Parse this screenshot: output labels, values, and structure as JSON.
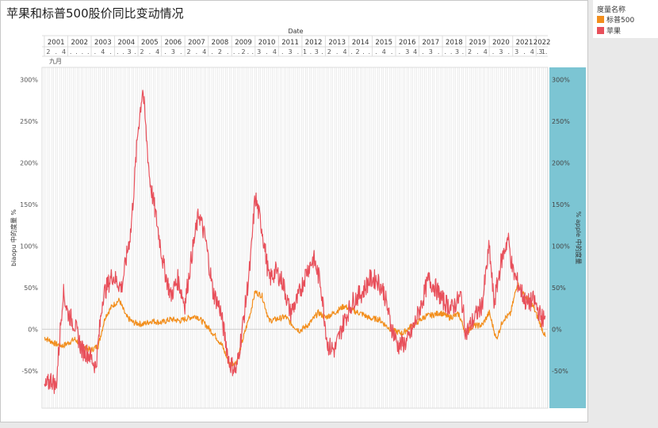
{
  "title": "苹果和标普500股价同比变动情况",
  "legend": {
    "title": "度量名称",
    "items": [
      {
        "label": "标普500",
        "color": "#f28e1c"
      },
      {
        "label": "苹果",
        "color": "#e8505b"
      }
    ]
  },
  "chart_data": {
    "type": "line",
    "title": "苹果和标普500股价同比变动情况",
    "xlabel": "Date",
    "ylabel": "biaopu 中的度量 %",
    "y2label": "% apple 中的度量",
    "x_range": [
      2000.9,
      2022.5
    ],
    "ylim": [
      -0.95,
      3.15
    ],
    "y_ticks": [
      -0.5,
      0,
      0.5,
      1.0,
      1.5,
      2.0,
      2.5,
      3.0
    ],
    "y_tick_labels": [
      "-50%",
      "0%",
      "50%",
      "100%",
      "150%",
      "200%",
      "250%",
      "300%"
    ],
    "year_labels": [
      "2001",
      "2002",
      "2003",
      "2004",
      "2005",
      "2006",
      "2007",
      "2008",
      "2009",
      "2010",
      "2011",
      "2012",
      "2013",
      "2014",
      "2015",
      "2016",
      "2017",
      "2018",
      "2019",
      "2020",
      "2021",
      "2022"
    ],
    "quarter_row": [
      {
        "year": "2001",
        "labels": [
          "2",
          ".",
          "4"
        ]
      },
      {
        "year": "2002",
        "labels": [
          ".",
          ".",
          ".",
          "."
        ]
      },
      {
        "year": "2003",
        "labels": [
          ".",
          "4",
          "."
        ]
      },
      {
        "year": "2004",
        "labels": [
          ".",
          ".",
          "3",
          "."
        ]
      },
      {
        "year": "2005",
        "labels": [
          "2",
          ".",
          "4"
        ]
      },
      {
        "year": "2006",
        "labels": [
          ".",
          "3",
          "."
        ]
      },
      {
        "year": "2007",
        "labels": [
          "2",
          ".",
          "4"
        ]
      },
      {
        "year": "2008",
        "labels": [
          ".",
          "2",
          "."
        ]
      },
      {
        "year": "2009",
        "labels": [
          ".",
          ".",
          "2",
          ".",
          "."
        ]
      },
      {
        "year": "2010",
        "labels": [
          "3",
          ".",
          "4"
        ]
      },
      {
        "year": "2011",
        "labels": [
          ".",
          "3",
          "."
        ]
      },
      {
        "year": "2012",
        "labels": [
          "1",
          ".",
          "3",
          "."
        ]
      },
      {
        "year": "2013",
        "labels": [
          "2",
          ".",
          "4"
        ]
      },
      {
        "year": "2014",
        "labels": [
          ".",
          "2",
          ".",
          "."
        ]
      },
      {
        "year": "2015",
        "labels": [
          ".",
          "4",
          "."
        ]
      },
      {
        "year": "2016",
        "labels": [
          ".",
          "3",
          "4"
        ]
      },
      {
        "year": "2017",
        "labels": [
          ".",
          "3",
          "."
        ]
      },
      {
        "year": "2018",
        "labels": [
          ".",
          ".",
          "3",
          "."
        ]
      },
      {
        "year": "2019",
        "labels": [
          "2",
          ".",
          "4"
        ]
      },
      {
        "year": "2020",
        "labels": [
          ".",
          "3",
          "."
        ]
      },
      {
        "year": "2021",
        "labels": [
          "3",
          ".",
          "4"
        ]
      },
      {
        "year": "2022",
        "labels": [
          ".",
          "3",
          "1",
          "."
        ]
      }
    ],
    "month_label": "九月",
    "series": [
      {
        "name": "标普500",
        "color": "#f28e1c",
        "points": [
          [
            2001.0,
            -0.1
          ],
          [
            2001.5,
            -0.18
          ],
          [
            2001.8,
            -0.2
          ],
          [
            2002.3,
            -0.12
          ],
          [
            2002.7,
            -0.22
          ],
          [
            2003.0,
            -0.25
          ],
          [
            2003.3,
            -0.2
          ],
          [
            2003.6,
            0.15
          ],
          [
            2003.9,
            0.28
          ],
          [
            2004.2,
            0.35
          ],
          [
            2004.5,
            0.15
          ],
          [
            2004.8,
            0.08
          ],
          [
            2005.2,
            0.06
          ],
          [
            2005.6,
            0.1
          ],
          [
            2006.0,
            0.08
          ],
          [
            2006.4,
            0.12
          ],
          [
            2006.8,
            0.1
          ],
          [
            2007.2,
            0.14
          ],
          [
            2007.5,
            0.16
          ],
          [
            2007.9,
            0.05
          ],
          [
            2008.3,
            -0.08
          ],
          [
            2008.6,
            -0.2
          ],
          [
            2008.9,
            -0.42
          ],
          [
            2009.2,
            -0.4
          ],
          [
            2009.5,
            -0.1
          ],
          [
            2009.8,
            0.2
          ],
          [
            2010.0,
            0.45
          ],
          [
            2010.3,
            0.4
          ],
          [
            2010.6,
            0.1
          ],
          [
            2010.9,
            0.12
          ],
          [
            2011.3,
            0.15
          ],
          [
            2011.6,
            0.05
          ],
          [
            2011.9,
            -0.02
          ],
          [
            2012.3,
            0.06
          ],
          [
            2012.7,
            0.2
          ],
          [
            2013.0,
            0.14
          ],
          [
            2013.4,
            0.2
          ],
          [
            2013.8,
            0.28
          ],
          [
            2014.2,
            0.22
          ],
          [
            2014.6,
            0.18
          ],
          [
            2014.9,
            0.13
          ],
          [
            2015.3,
            0.12
          ],
          [
            2015.6,
            0.04
          ],
          [
            2015.9,
            -0.02
          ],
          [
            2016.3,
            -0.05
          ],
          [
            2016.6,
            0.02
          ],
          [
            2016.9,
            0.08
          ],
          [
            2017.3,
            0.16
          ],
          [
            2017.6,
            0.17
          ],
          [
            2017.9,
            0.2
          ],
          [
            2018.3,
            0.14
          ],
          [
            2018.7,
            0.18
          ],
          [
            2019.0,
            -0.05
          ],
          [
            2019.3,
            0.04
          ],
          [
            2019.7,
            0.05
          ],
          [
            2020.0,
            0.2
          ],
          [
            2020.3,
            -0.12
          ],
          [
            2020.6,
            0.12
          ],
          [
            2020.9,
            0.18
          ],
          [
            2021.2,
            0.55
          ],
          [
            2021.5,
            0.4
          ],
          [
            2021.8,
            0.32
          ],
          [
            2022.1,
            0.12
          ],
          [
            2022.4,
            -0.1
          ]
        ]
      },
      {
        "name": "苹果",
        "color": "#e8505b",
        "points": [
          [
            2001.0,
            -0.72
          ],
          [
            2001.3,
            -0.6
          ],
          [
            2001.5,
            -0.7
          ],
          [
            2001.8,
            0.45
          ],
          [
            2002.0,
            0.2
          ],
          [
            2002.3,
            0.05
          ],
          [
            2002.6,
            -0.25
          ],
          [
            2002.9,
            -0.3
          ],
          [
            2003.2,
            -0.45
          ],
          [
            2003.5,
            0.4
          ],
          [
            2003.9,
            0.65
          ],
          [
            2004.3,
            0.5
          ],
          [
            2004.7,
            1.2
          ],
          [
            2005.0,
            2.4
          ],
          [
            2005.2,
            2.9
          ],
          [
            2005.5,
            1.8
          ],
          [
            2005.8,
            1.3
          ],
          [
            2006.1,
            0.75
          ],
          [
            2006.4,
            0.4
          ],
          [
            2006.7,
            0.6
          ],
          [
            2007.0,
            0.3
          ],
          [
            2007.3,
            0.9
          ],
          [
            2007.6,
            1.4
          ],
          [
            2007.9,
            1.05
          ],
          [
            2008.2,
            0.45
          ],
          [
            2008.5,
            0.25
          ],
          [
            2008.9,
            -0.4
          ],
          [
            2009.2,
            -0.5
          ],
          [
            2009.5,
            0.1
          ],
          [
            2009.8,
            0.8
          ],
          [
            2010.0,
            1.6
          ],
          [
            2010.3,
            1.2
          ],
          [
            2010.6,
            0.6
          ],
          [
            2010.9,
            0.7
          ],
          [
            2011.2,
            0.55
          ],
          [
            2011.5,
            0.2
          ],
          [
            2011.8,
            0.35
          ],
          [
            2012.2,
            0.7
          ],
          [
            2012.5,
            0.85
          ],
          [
            2012.8,
            0.55
          ],
          [
            2013.1,
            -0.2
          ],
          [
            2013.4,
            -0.25
          ],
          [
            2013.8,
            0.1
          ],
          [
            2014.2,
            0.35
          ],
          [
            2014.6,
            0.45
          ],
          [
            2014.9,
            0.6
          ],
          [
            2015.2,
            0.6
          ],
          [
            2015.5,
            0.45
          ],
          [
            2015.8,
            0.05
          ],
          [
            2016.1,
            -0.2
          ],
          [
            2016.5,
            -0.15
          ],
          [
            2016.8,
            0.05
          ],
          [
            2017.1,
            0.3
          ],
          [
            2017.4,
            0.6
          ],
          [
            2017.7,
            0.5
          ],
          [
            2018.0,
            0.35
          ],
          [
            2018.4,
            0.25
          ],
          [
            2018.8,
            0.4
          ],
          [
            2019.0,
            -0.05
          ],
          [
            2019.3,
            0.1
          ],
          [
            2019.7,
            0.3
          ],
          [
            2020.0,
            1.0
          ],
          [
            2020.2,
            0.3
          ],
          [
            2020.5,
            0.8
          ],
          [
            2020.8,
            1.1
          ],
          [
            2021.0,
            0.7
          ],
          [
            2021.3,
            0.5
          ],
          [
            2021.6,
            0.3
          ],
          [
            2021.9,
            0.35
          ],
          [
            2022.2,
            0.15
          ],
          [
            2022.4,
            0.1
          ]
        ]
      }
    ]
  }
}
